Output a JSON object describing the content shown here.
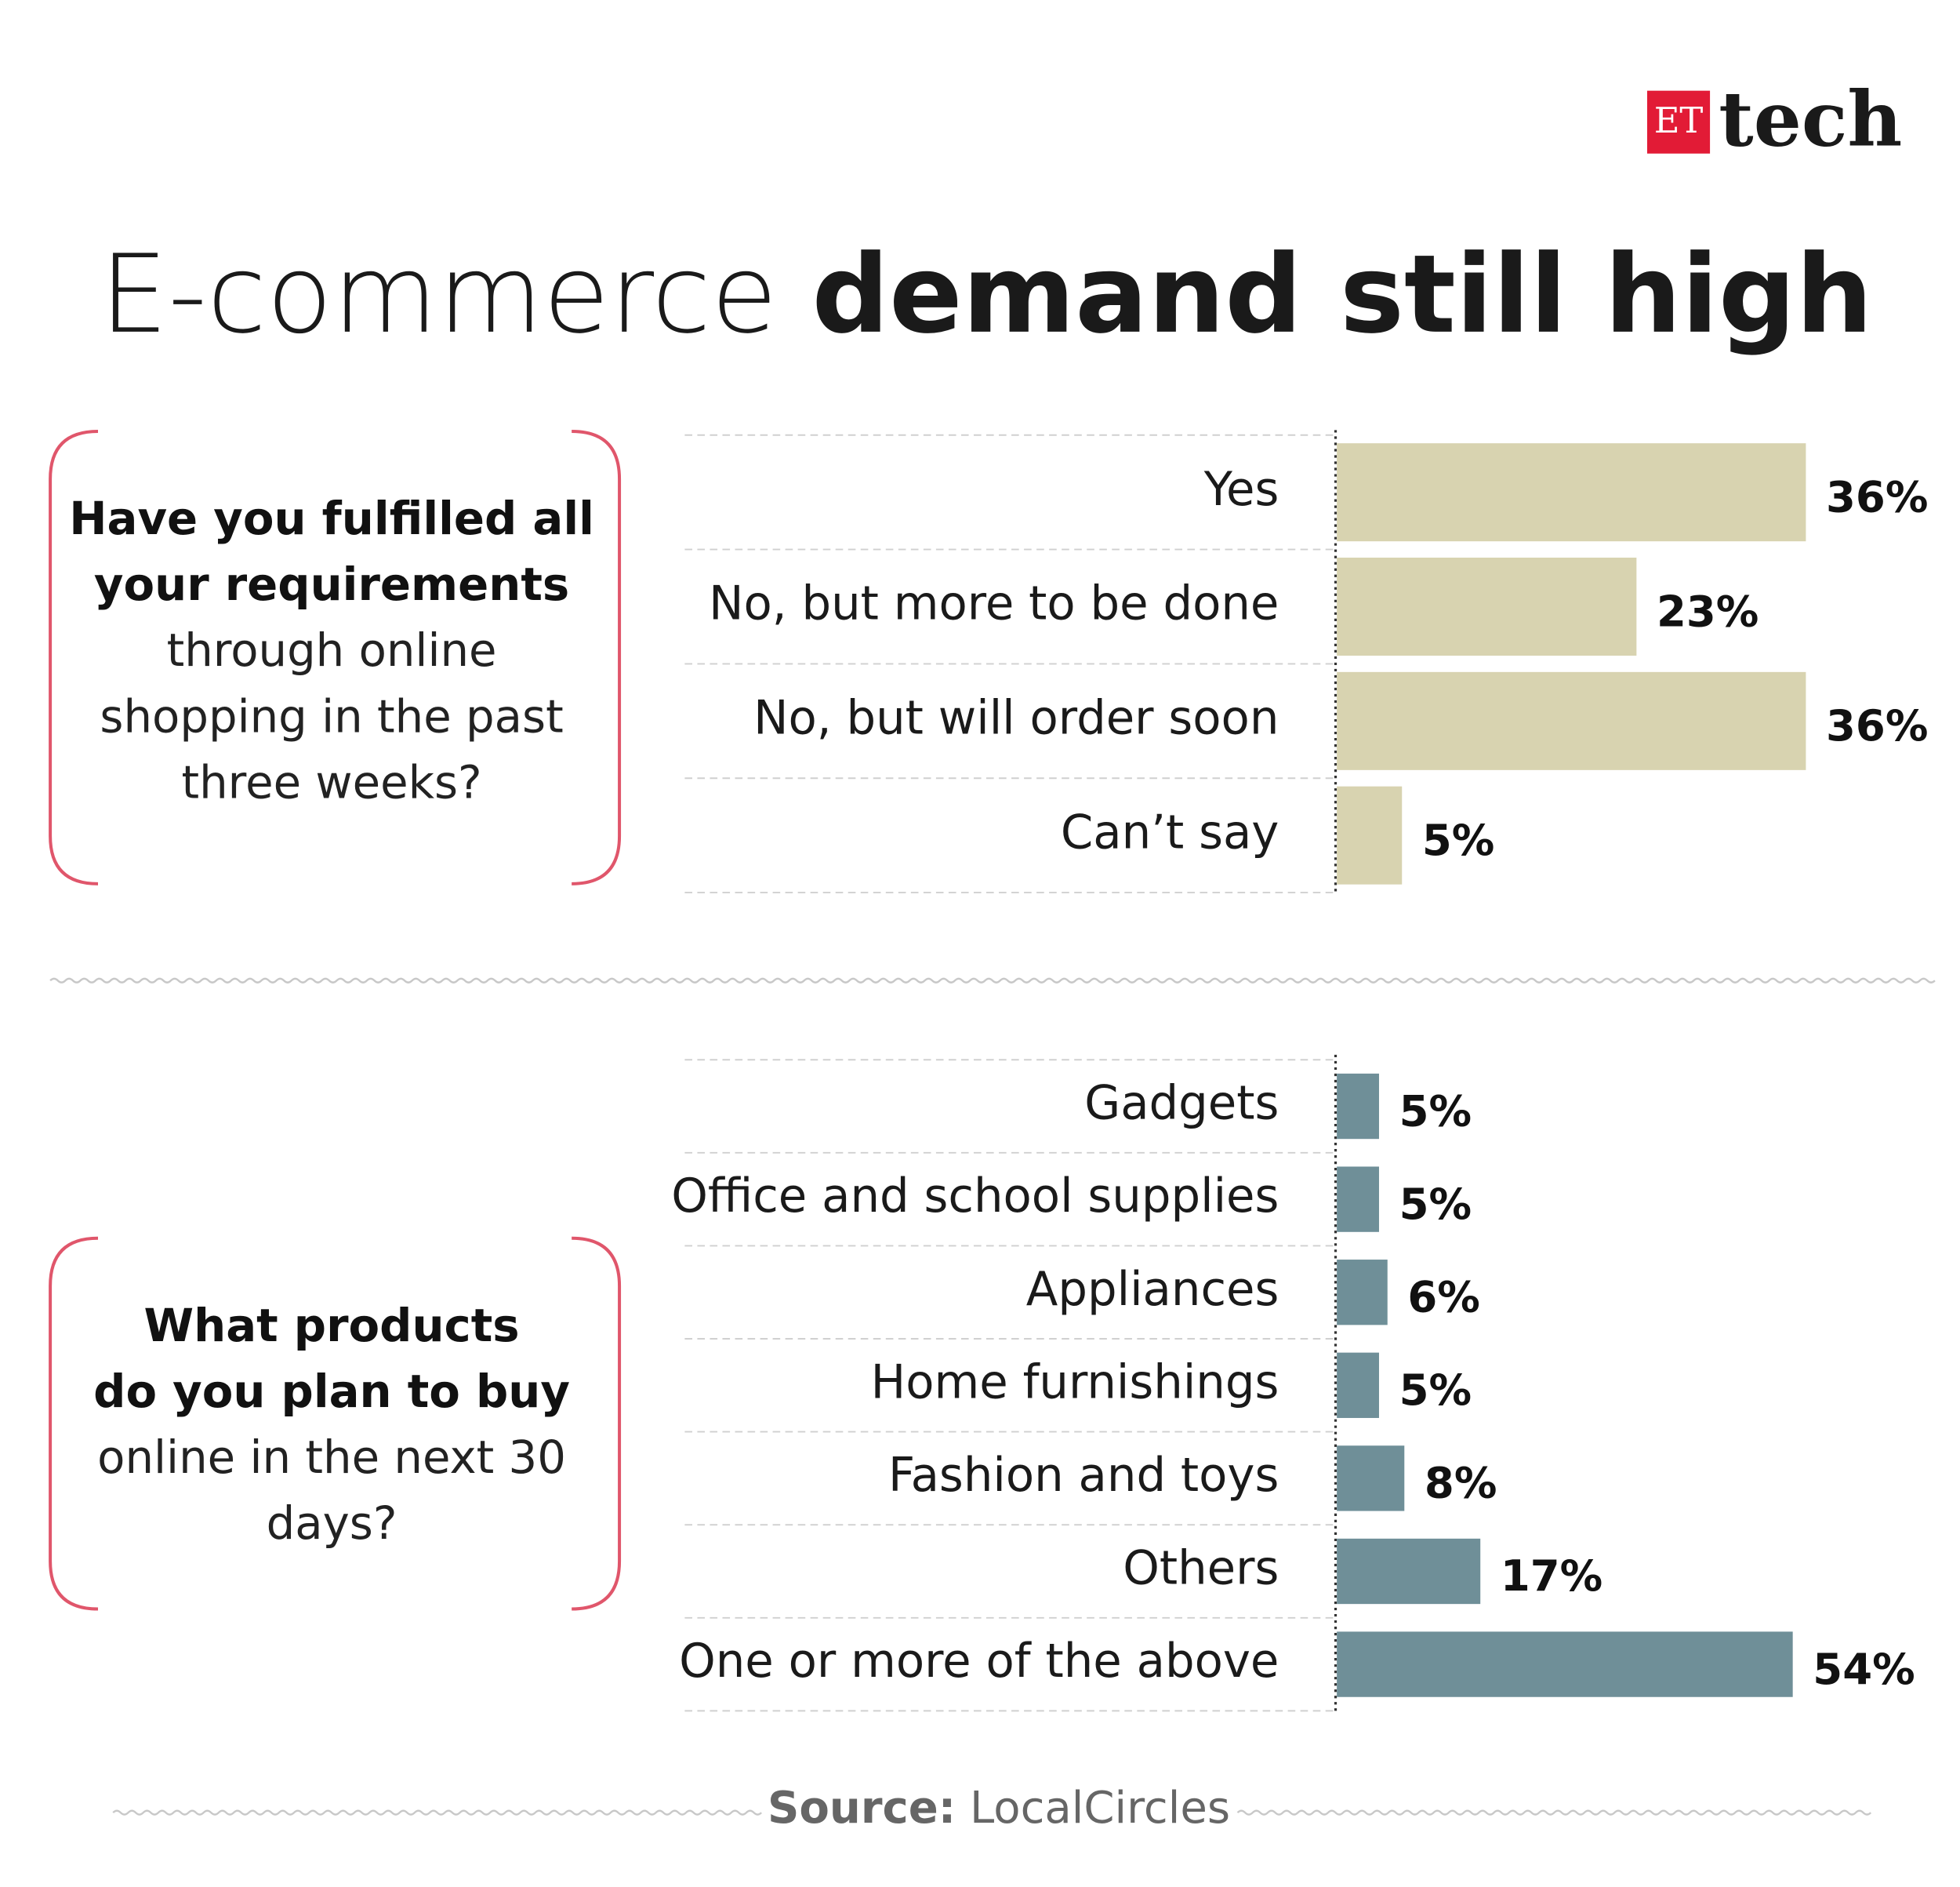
{
  "header": {
    "logo_et": "ET",
    "logo_tech": "tech",
    "title_light": "E-commerce",
    "title_bold": "demand still high"
  },
  "chart_data": [
    {
      "type": "bar",
      "orientation": "horizontal",
      "question_bold_lines": [
        "Have you fulfilled all",
        "your requirements"
      ],
      "question_lines": [
        "through online",
        "shopping in the past",
        "three weeks?"
      ],
      "categories": [
        "Yes",
        "No, but more to be done",
        "No, but will order soon",
        "Can’t say"
      ],
      "values": [
        36,
        23,
        36,
        5
      ],
      "value_labels": [
        "36%",
        "23%",
        "36%",
        "5%"
      ],
      "color": "#d8d3b0"
    },
    {
      "type": "bar",
      "orientation": "horizontal",
      "question_bold_lines": [
        "What products",
        "do you plan to buy"
      ],
      "question_lines": [
        "online in the next 30",
        "days?"
      ],
      "categories": [
        "Gadgets",
        "Office and school supplies",
        "Appliances",
        "Home furnishings",
        "Fashion and toys",
        "Others",
        "One or more of the above"
      ],
      "values": [
        5,
        5,
        6,
        5,
        8,
        17,
        54
      ],
      "value_labels": [
        "5%",
        "5%",
        "6%",
        "5%",
        "8%",
        "17%",
        "54%"
      ],
      "color": "#6f8f98"
    }
  ],
  "source": {
    "label": "Source:",
    "text": "LocalCircles"
  }
}
